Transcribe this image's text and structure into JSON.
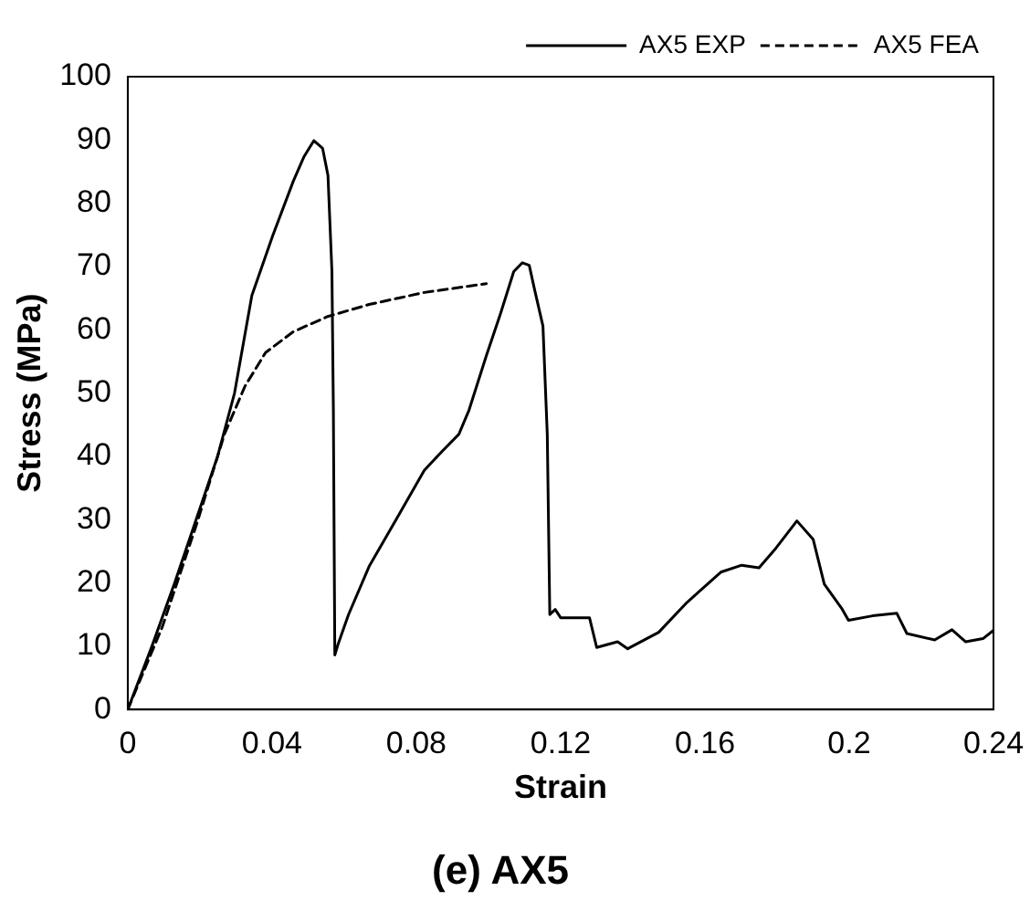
{
  "chart_data": {
    "type": "line",
    "title": "(e) AX5",
    "xlabel": "Strain",
    "ylabel": "Stress (MPa)",
    "xlim": [
      0,
      0.24
    ],
    "xticks": [
      0,
      0.04,
      0.08,
      0.12,
      0.16,
      0.2,
      0.24
    ],
    "ylim": [
      0,
      100
    ],
    "yticks": [
      0,
      10,
      20,
      30,
      40,
      50,
      60,
      70,
      80,
      90,
      100
    ],
    "grid": false,
    "legend": "top right",
    "marker": "none",
    "series": [
      {
        "name": "AX5 EXP",
        "color": "#000000",
        "line_style": "solid",
        "x": [
          0,
          0.0067,
          0.013,
          0.0249,
          0.0296,
          0.0344,
          0.0402,
          0.0459,
          0.0488,
          0.0516,
          0.054,
          0.0555,
          0.0566,
          0.057,
          0.0574,
          0.0583,
          0.0612,
          0.0669,
          0.0746,
          0.0822,
          0.087,
          0.0918,
          0.0946,
          0.0994,
          0.1033,
          0.107,
          0.1094,
          0.1113,
          0.1128,
          0.1151,
          0.1163,
          0.117,
          0.1185,
          0.12,
          0.123,
          0.128,
          0.13,
          0.1358,
          0.1386,
          0.1472,
          0.155,
          0.1644,
          0.1702,
          0.175,
          0.1797,
          0.1855,
          0.19,
          0.1931,
          0.1979,
          0.1998,
          0.2065,
          0.2132,
          0.216,
          0.2237,
          0.2285,
          0.2323,
          0.2371,
          0.24
        ],
        "values": [
          0,
          10,
          20,
          40,
          50,
          65.4,
          74.9,
          83.5,
          87.3,
          89.9,
          88.7,
          84.4,
          69.2,
          47.3,
          8.6,
          10.3,
          15,
          22.6,
          30.2,
          37.8,
          40.7,
          43.5,
          47.3,
          55.9,
          62.5,
          69.2,
          70.6,
          70.2,
          66.3,
          60.6,
          43.5,
          15,
          15.8,
          14.5,
          14.5,
          14.5,
          9.8,
          10.7,
          9.6,
          12.2,
          16.9,
          21.7,
          22.8,
          22.4,
          25.5,
          29.8,
          26.9,
          19.8,
          16,
          14.1,
          14.8,
          15.2,
          12,
          11,
          12.6,
          10.7,
          11.2,
          12.5
        ]
      },
      {
        "name": "AX5 FEA",
        "color": "#000000",
        "line_style": "dashed",
        "x": [
          0,
          0.0096,
          0.0191,
          0.0268,
          0.0325,
          0.0382,
          0.0459,
          0.0554,
          0.0669,
          0.0822,
          0.0994
        ],
        "values": [
          0,
          13.1,
          29.3,
          43.5,
          51.1,
          56.4,
          59.7,
          62.1,
          64,
          65.9,
          67.3
        ]
      }
    ]
  }
}
